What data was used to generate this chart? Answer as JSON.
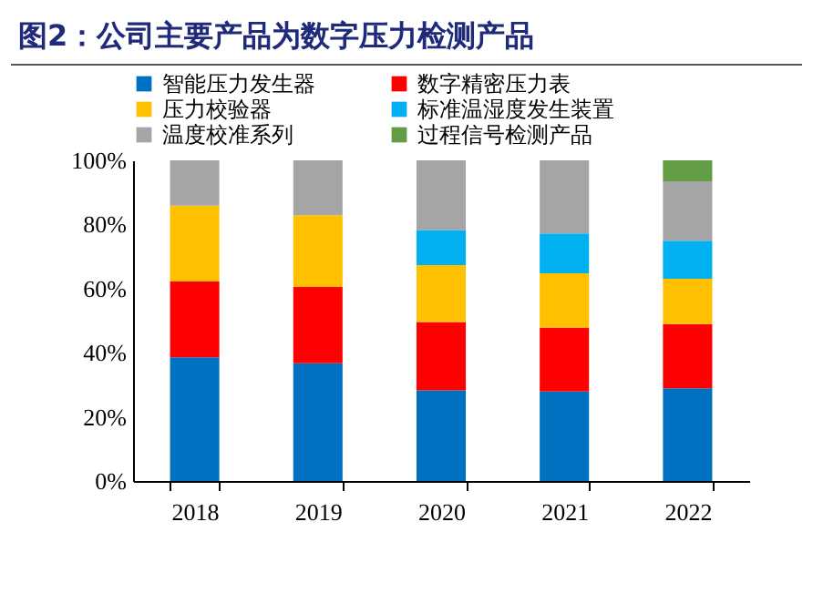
{
  "chart_data": {
    "type": "bar",
    "title": "图2：公司主要产品为数字压力检测产品",
    "categories": [
      "2018",
      "2019",
      "2020",
      "2021",
      "2022"
    ],
    "stacked": true,
    "series": [
      {
        "name": "智能压力发生器",
        "color": "#0070c0",
        "values": [
          38.6,
          36.7,
          28.3,
          27.9,
          28.9
        ]
      },
      {
        "name": "数字精密压力表",
        "color": "#ff0000",
        "values": [
          23.6,
          23.8,
          21.3,
          20.0,
          20.0
        ]
      },
      {
        "name": "压力校验器",
        "color": "#ffc000",
        "values": [
          23.7,
          22.4,
          17.7,
          16.9,
          14.2
        ]
      },
      {
        "name": "标准温湿度发生装置",
        "color": "#00b0f0",
        "values": [
          null,
          null,
          11.0,
          12.4,
          11.8
        ]
      },
      {
        "name": "温度校准系列",
        "color": "#a5a5a5",
        "values": [
          14.1,
          17.1,
          21.7,
          22.8,
          18.6
        ]
      },
      {
        "name": "过程信号检测产品",
        "color": "#629c44",
        "values": [
          null,
          null,
          null,
          null,
          6.5
        ]
      }
    ],
    "ylim": [
      0,
      100
    ],
    "yticks": [
      {
        "value": 0,
        "label": "0%"
      },
      {
        "value": 20,
        "label": "20%"
      },
      {
        "value": 40,
        "label": "40%"
      },
      {
        "value": 60,
        "label": "60%"
      },
      {
        "value": 80,
        "label": "80%"
      },
      {
        "value": 100,
        "label": "100%"
      }
    ],
    "legend": "top",
    "grid": false
  }
}
